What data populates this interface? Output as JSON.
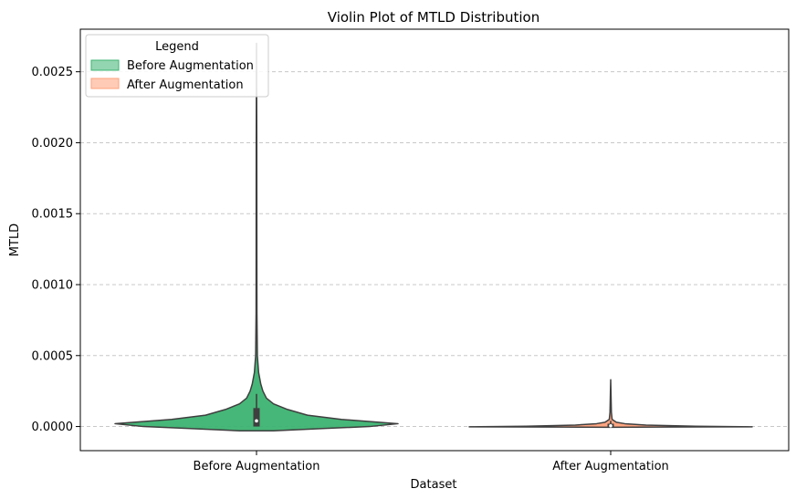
{
  "chart_data": {
    "type": "violin",
    "title": "Violin Plot of MTLD Distribution",
    "xlabel": "Dataset",
    "ylabel": "MTLD",
    "categories": [
      "Before Augmentation",
      "After Augmentation"
    ],
    "ylim": [
      -0.00017,
      0.0028
    ],
    "yticks": [
      0.0,
      0.0005,
      0.001,
      0.0015,
      0.002,
      0.0025
    ],
    "ytick_labels": [
      "0.0000",
      "0.0005",
      "0.0010",
      "0.0015",
      "0.0020",
      "0.0025"
    ],
    "grid": "horizontal dashed",
    "legend": {
      "title": "Legend",
      "position": "top-left",
      "entries": [
        {
          "label": "Before Augmentation",
          "color": "#3cb371"
        },
        {
          "label": "After Augmentation",
          "color": "#ffa07a"
        }
      ]
    },
    "series": [
      {
        "name": "Before Augmentation",
        "color": "#3cb371",
        "whisker_range": [
          0.0,
          0.00023
        ],
        "box": {
          "q1": 0.0,
          "median": 4e-05,
          "q3": 0.00013
        },
        "max": 0.0027,
        "density": [
          {
            "y": -3e-05,
            "w": 0.0
          },
          {
            "y": -3e-05,
            "w": 0.12
          },
          {
            "y": -1.5e-05,
            "w": 0.45
          },
          {
            "y": 0.0,
            "w": 0.8
          },
          {
            "y": 2e-05,
            "w": 1.0
          },
          {
            "y": 5e-05,
            "w": 0.6
          },
          {
            "y": 8e-05,
            "w": 0.36
          },
          {
            "y": 0.00012,
            "w": 0.22
          },
          {
            "y": 0.00016,
            "w": 0.12
          },
          {
            "y": 0.0002,
            "w": 0.07
          },
          {
            "y": 0.00025,
            "w": 0.045
          },
          {
            "y": 0.0003,
            "w": 0.03
          },
          {
            "y": 0.00038,
            "w": 0.015
          },
          {
            "y": 0.0005,
            "w": 0.006
          },
          {
            "y": 0.0008,
            "w": 0.003
          },
          {
            "y": 0.0012,
            "w": 0.0025
          },
          {
            "y": 0.002,
            "w": 0.002
          },
          {
            "y": 0.0027,
            "w": 0.0
          }
        ]
      },
      {
        "name": "After Augmentation",
        "color": "#ffa07a",
        "whisker_range": [
          0.0,
          4e-05
        ],
        "box": {
          "q1": -5e-06,
          "median": 5e-06,
          "q3": 2e-05
        },
        "max": 0.00033,
        "density": [
          {
            "y": -5e-06,
            "w": 0.0
          },
          {
            "y": -4e-06,
            "w": 0.35
          },
          {
            "y": -2e-06,
            "w": 1.0
          },
          {
            "y": 2e-06,
            "w": 0.6
          },
          {
            "y": 1e-05,
            "w": 0.25
          },
          {
            "y": 2e-05,
            "w": 0.1
          },
          {
            "y": 3e-05,
            "w": 0.04
          },
          {
            "y": 5e-05,
            "w": 0.01
          },
          {
            "y": 0.0001,
            "w": 0.005
          },
          {
            "y": 0.00033,
            "w": 0.0
          }
        ]
      }
    ]
  }
}
